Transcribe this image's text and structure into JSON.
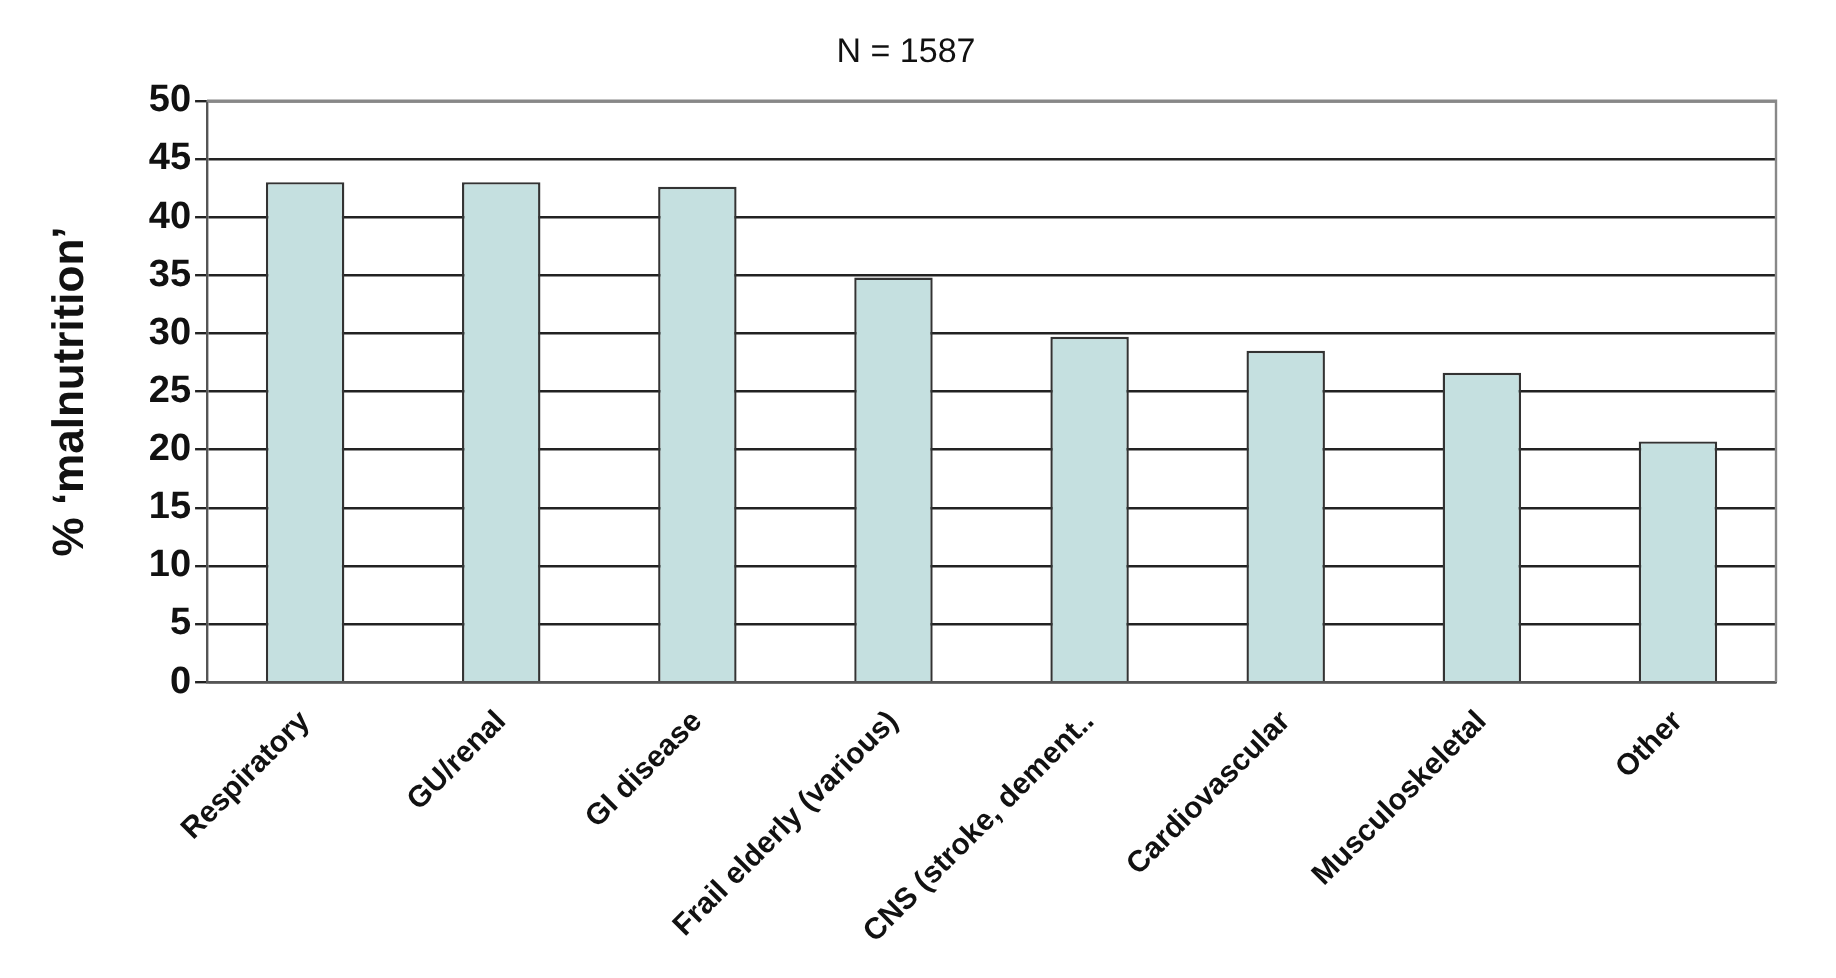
{
  "chart_data": {
    "type": "bar",
    "title": "N = 1587",
    "ylabel": "% ‘malnutrition’",
    "categories": [
      "Respiratory",
      "GU/renal",
      "GI disease",
      "Frail elderly (various)",
      "CNS (stroke, dement..",
      "Cardiovascular",
      "Musculoskeletal",
      "Other"
    ],
    "values": [
      43,
      43,
      42.6,
      34.8,
      29.7,
      28.5,
      26.6,
      20.7
    ],
    "color": "#c5e0e0",
    "ylim": [
      0,
      50
    ],
    "yticks": [
      0,
      5,
      10,
      15,
      20,
      25,
      30,
      35,
      40,
      45,
      50
    ],
    "grid": "y"
  }
}
